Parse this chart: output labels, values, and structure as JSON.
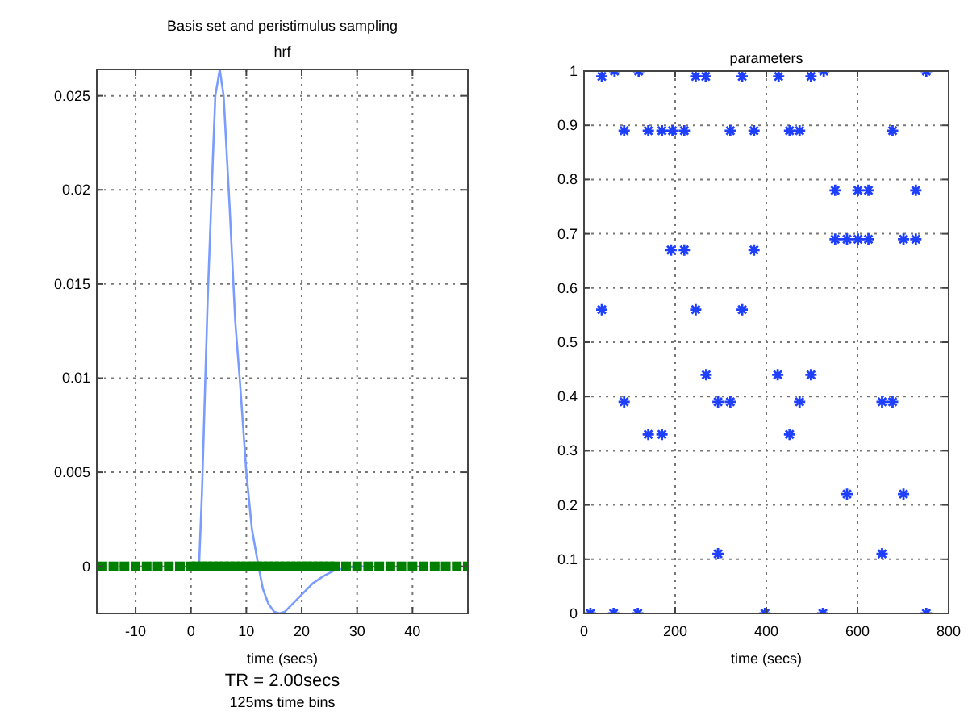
{
  "chart_data": [
    {
      "type": "line",
      "title": "Basis set and peristimulus sampling",
      "subtitle": "hrf",
      "xlabel": "time (secs)",
      "annotations": [
        "TR = 2.00secs",
        "125ms time bins"
      ],
      "xlim": [
        -17,
        50
      ],
      "ylim": [
        -0.0025,
        0.0264
      ],
      "xticks": [
        -10,
        0,
        10,
        20,
        30,
        40
      ],
      "yticks": [
        0,
        0.005,
        0.01,
        0.015,
        0.02,
        0.025
      ],
      "grid": true,
      "series": [
        {
          "type": "line",
          "color": "#7b9cff",
          "marker": "none",
          "line_style": "solid",
          "x": [
            0,
            1,
            1.5,
            2,
            3,
            4,
            4.4,
            5.2,
            5.9,
            7,
            8,
            8.8,
            10,
            11,
            12.2,
            13,
            14,
            15,
            16,
            17,
            18,
            20,
            22,
            24,
            26,
            28,
            30,
            32
          ],
          "values": [
            0,
            0,
            0.0003,
            0.004,
            0.014,
            0.022,
            0.025,
            0.0264,
            0.025,
            0.019,
            0.013,
            0.01,
            0.005,
            0.002,
            0,
            -0.0012,
            -0.002,
            -0.0024,
            -0.0025,
            -0.0024,
            -0.0021,
            -0.0015,
            -0.0009,
            -0.0005,
            -0.0002,
            -0.0001,
            0,
            0
          ]
        },
        {
          "type": "scatter",
          "color": "#008000",
          "marker": "square",
          "x": [
            -16,
            -14,
            -12,
            -10,
            -8,
            -6,
            -4,
            -2,
            0,
            1,
            2,
            3,
            4,
            5,
            6,
            7,
            8,
            9,
            10,
            11,
            12,
            13,
            14,
            15,
            16,
            17,
            18,
            19,
            20,
            21,
            22,
            23,
            24,
            25,
            26,
            28,
            30,
            32,
            34,
            36,
            38,
            40,
            42,
            44,
            46,
            48,
            50
          ],
          "values": [
            0,
            0,
            0,
            0,
            0,
            0,
            0,
            0,
            0,
            0,
            0,
            0,
            0,
            0,
            0,
            0,
            0,
            0,
            0,
            0,
            0,
            0,
            0,
            0,
            0,
            0,
            0,
            0,
            0,
            0,
            0,
            0,
            0,
            0,
            0,
            0,
            0,
            0,
            0,
            0,
            0,
            0,
            0,
            0,
            0,
            0,
            0
          ]
        }
      ]
    },
    {
      "type": "scatter",
      "title": "parameters",
      "xlabel": "time (secs)",
      "xlim": [
        0,
        800
      ],
      "ylim": [
        0,
        1
      ],
      "xticks": [
        0,
        200,
        400,
        600,
        800
      ],
      "yticks": [
        0,
        0.1,
        0.2,
        0.3,
        0.4,
        0.5,
        0.6,
        0.7,
        0.8,
        0.9,
        1
      ],
      "grid": true,
      "marker": "cross",
      "series": [
        {
          "color": "#1f3fff",
          "x": [
            39,
            67,
            120,
            245,
            267,
            347,
            427,
            498,
            526,
            751,
            88,
            141,
            171,
            194,
            220,
            321,
            373,
            451,
            473,
            677,
            551,
            601,
            624,
            728,
            551,
            577,
            601,
            624,
            701,
            728,
            191,
            220,
            373,
            39,
            245,
            347,
            268,
            425,
            498,
            88,
            294,
            321,
            473,
            654,
            677,
            141,
            171,
            451,
            577,
            701,
            294,
            654,
            14,
            65,
            118,
            397,
            524,
            751
          ],
          "values": [
            0.99,
            1,
            1,
            0.99,
            0.99,
            0.99,
            0.99,
            0.99,
            1,
            1,
            0.89,
            0.89,
            0.89,
            0.89,
            0.89,
            0.89,
            0.89,
            0.89,
            0.89,
            0.89,
            0.78,
            0.78,
            0.78,
            0.78,
            0.69,
            0.69,
            0.69,
            0.69,
            0.69,
            0.69,
            0.67,
            0.67,
            0.67,
            0.56,
            0.56,
            0.56,
            0.44,
            0.44,
            0.44,
            0.39,
            0.39,
            0.39,
            0.39,
            0.39,
            0.39,
            0.33,
            0.33,
            0.33,
            0.22,
            0.22,
            0.11,
            0.11,
            0,
            0,
            0,
            0,
            0,
            0
          ]
        }
      ]
    }
  ]
}
